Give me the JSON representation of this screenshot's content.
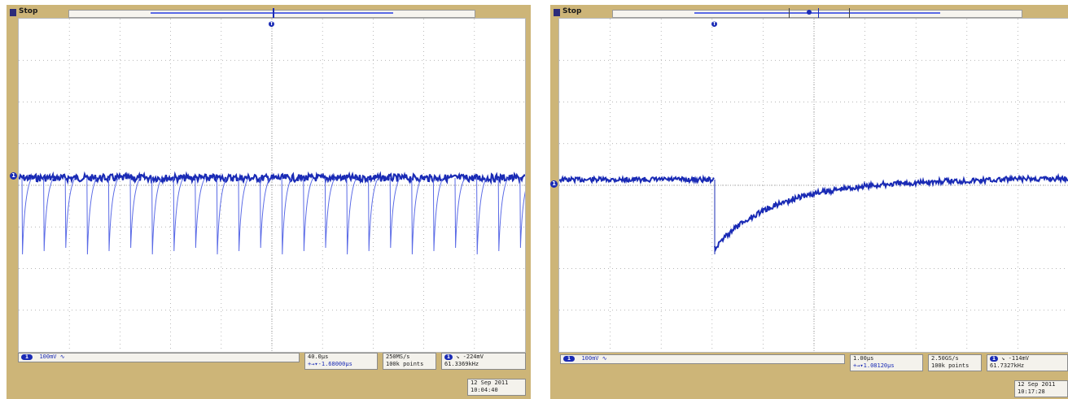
{
  "colors": {
    "bezel": "#cdb578",
    "screen": "#ffffff",
    "grid": "#9e9e9e",
    "trace": "#1a2bb5",
    "trace_light": "#5a6ae6"
  },
  "left_scope": {
    "status": "Stop",
    "channel_marker": "1",
    "trigger_marker": "T",
    "ch1_scale": "100mV",
    "ch1_coupling_icon": "bandwidth-icon",
    "timebase": "40.0μs",
    "trigger_delay": "+→▾-1.68000μs",
    "sample_rate": "250MS/s",
    "record_length": "100k points",
    "trigger_level": "-224mV",
    "trigger_freq": "61.3369kHz",
    "date": "12 Sep  2011",
    "time": "10:04:40"
  },
  "right_scope": {
    "status": "Stop",
    "channel_marker": "1",
    "trigger_marker": "T",
    "ch1_scale": "100mV",
    "ch1_coupling_icon": "bandwidth-icon",
    "timebase": "1.00μs",
    "trigger_delay": "+→▾1.08120μs",
    "sample_rate": "2.50GS/s",
    "record_length": "100k points",
    "trigger_level": "-114mV",
    "trigger_freq": "61.7327kHz",
    "date": "12 Sep  2011",
    "time": "10:17:28"
  }
}
